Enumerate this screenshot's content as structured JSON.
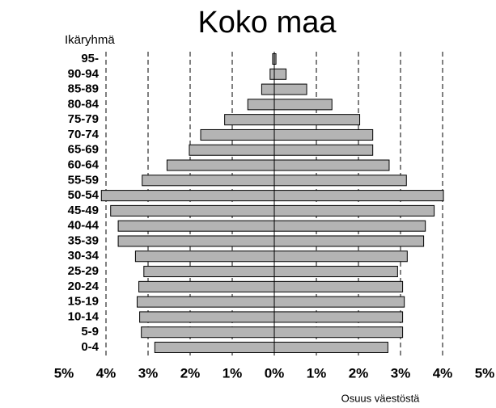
{
  "chart_data": {
    "type": "pyramid",
    "title": "Koko maa",
    "y_label": "Ikäryhmä",
    "x_label": "Osuus väestöstä",
    "categories": [
      "95-",
      "90-94",
      "85-89",
      "80-84",
      "75-79",
      "70-74",
      "65-69",
      "60-64",
      "55-59",
      "50-54",
      "45-49",
      "40-44",
      "35-39",
      "30-34",
      "25-29",
      "20-24",
      "15-19",
      "10-14",
      "5-9",
      "0-4"
    ],
    "series": [
      {
        "color": "#b4b4b4",
        "values": [
          -0.04,
          -0.1,
          -0.3,
          -0.63,
          -1.18,
          -1.75,
          -2.02,
          -2.55,
          -3.14,
          -4.11,
          -3.89,
          -3.71,
          -3.71,
          -3.3,
          -3.1,
          -3.22,
          -3.26,
          -3.2,
          -3.16,
          -2.84
        ]
      },
      {
        "color": "#b4b4b4",
        "values": [
          0.04,
          0.28,
          0.77,
          1.37,
          2.03,
          2.34,
          2.34,
          2.73,
          3.14,
          4.02,
          3.8,
          3.59,
          3.55,
          3.16,
          2.93,
          3.05,
          3.09,
          3.05,
          3.05,
          2.7
        ]
      }
    ],
    "xlim": [
      -5,
      5
    ],
    "xticks": [
      {
        "value": -5,
        "label": "5%"
      },
      {
        "value": -4,
        "label": "4%"
      },
      {
        "value": -3,
        "label": "3%"
      },
      {
        "value": -2,
        "label": "2%"
      },
      {
        "value": -1,
        "label": "1%"
      },
      {
        "value": 0,
        "label": "0%"
      },
      {
        "value": 1,
        "label": "1%"
      },
      {
        "value": 2,
        "label": "2%"
      },
      {
        "value": 3,
        "label": "3%"
      },
      {
        "value": 4,
        "label": "4%"
      },
      {
        "value": 5,
        "label": "5%"
      }
    ],
    "grid": true
  }
}
